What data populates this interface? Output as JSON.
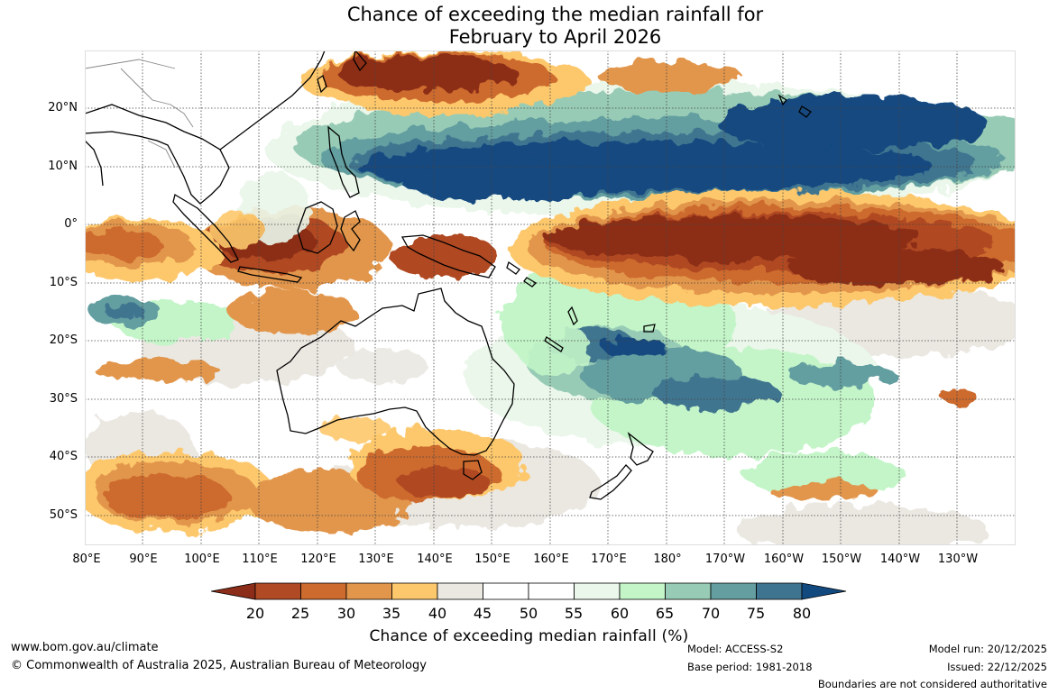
{
  "title": {
    "line1": "Chance of exceeding the median rainfall for",
    "line2": "February to April 2026"
  },
  "map": {
    "latitude_labels": [
      "20°N",
      "10°N",
      "0°",
      "10°S",
      "20°S",
      "30°S",
      "40°S",
      "50°S"
    ],
    "longitude_labels": [
      "80°E",
      "90°E",
      "100°E",
      "110°E",
      "120°E",
      "130°E",
      "140°E",
      "150°E",
      "160°E",
      "170°E",
      "180°",
      "170°W",
      "160°W",
      "150°W",
      "140°W",
      "130°W"
    ]
  },
  "colorbar": {
    "title": "Chance of exceeding median rainfall (%)",
    "ticks": [
      "20",
      "25",
      "30",
      "35",
      "40",
      "45",
      "50",
      "55",
      "60",
      "65",
      "70",
      "75",
      "80"
    ],
    "colors": [
      "#8c2d19",
      "#b04a24",
      "#cd6a2e",
      "#e2964b",
      "#fdc86c",
      "#ebe8e2",
      "#ffffff",
      "#ffffff",
      "#eaf7ea",
      "#c3f5c8",
      "#97cbb5",
      "#649ea0",
      "#3f7490",
      "#124a80"
    ]
  },
  "footer": {
    "website": "www.bom.gov.au/climate",
    "copyright": "© Commonwealth of Australia 2025, Australian Bureau of Meteorology",
    "model": "Model: ACCESS-S2",
    "base_period": "Base period: 1981-2018",
    "model_run": "Model run: 20/12/2025",
    "issued": "Issued: 22/12/2025",
    "disclaimer": "Boundaries are not considered authoritative"
  }
}
